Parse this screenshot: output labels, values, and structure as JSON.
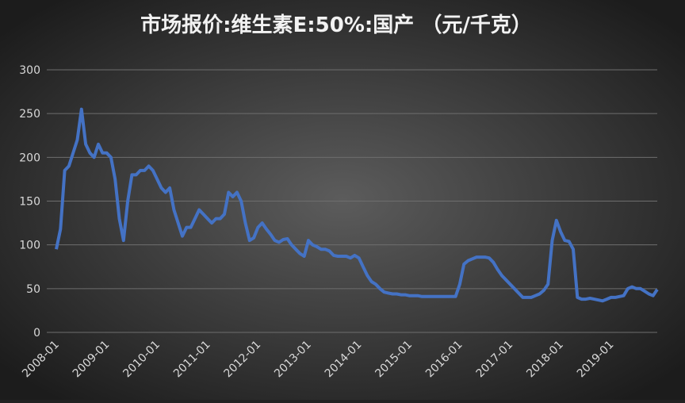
{
  "chart_data": {
    "type": "line",
    "title": "市场报价:维生素E:50%:国产 （元/千克）",
    "x": [
      "2008-01",
      "2008-02",
      "2008-03",
      "2008-04",
      "2008-05",
      "2008-06",
      "2008-07",
      "2008-08",
      "2008-09",
      "2008-10",
      "2008-11",
      "2008-12",
      "2009-01",
      "2009-02",
      "2009-03",
      "2009-04",
      "2009-05",
      "2009-06",
      "2009-07",
      "2009-08",
      "2009-09",
      "2009-10",
      "2009-11",
      "2009-12",
      "2010-01",
      "2010-02",
      "2010-03",
      "2010-04",
      "2010-05",
      "2010-06",
      "2010-07",
      "2010-08",
      "2010-09",
      "2010-10",
      "2010-11",
      "2010-12",
      "2011-01",
      "2011-02",
      "2011-03",
      "2011-04",
      "2011-05",
      "2011-06",
      "2011-07",
      "2011-08",
      "2011-09",
      "2011-10",
      "2011-11",
      "2011-12",
      "2012-01",
      "2012-02",
      "2012-03",
      "2012-04",
      "2012-05",
      "2012-06",
      "2012-07",
      "2012-08",
      "2012-09",
      "2012-10",
      "2012-11",
      "2012-12",
      "2013-01",
      "2013-02",
      "2013-03",
      "2013-04",
      "2013-05",
      "2013-06",
      "2013-07",
      "2013-08",
      "2013-09",
      "2013-10",
      "2013-11",
      "2013-12",
      "2014-01",
      "2014-02",
      "2014-03",
      "2014-04",
      "2014-05",
      "2014-06",
      "2014-07",
      "2014-08",
      "2014-09",
      "2014-10",
      "2014-11",
      "2014-12",
      "2015-01",
      "2015-02",
      "2015-03",
      "2015-04",
      "2015-05",
      "2015-06",
      "2015-07",
      "2015-08",
      "2015-09",
      "2015-10",
      "2015-11",
      "2015-12",
      "2016-01",
      "2016-02",
      "2016-03",
      "2016-04",
      "2016-05",
      "2016-06",
      "2016-07",
      "2016-08",
      "2016-09",
      "2016-10",
      "2016-11",
      "2016-12",
      "2017-01",
      "2017-02",
      "2017-03",
      "2017-04",
      "2017-05",
      "2017-06",
      "2017-07",
      "2017-08",
      "2017-09",
      "2017-10",
      "2017-11",
      "2017-12",
      "2018-01",
      "2018-02",
      "2018-03",
      "2018-04",
      "2018-05",
      "2018-06",
      "2018-07",
      "2018-08",
      "2018-09",
      "2018-10",
      "2018-11",
      "2018-12",
      "2019-01",
      "2019-02",
      "2019-03",
      "2019-04",
      "2019-05",
      "2019-06",
      "2019-07",
      "2019-08",
      "2019-09",
      "2019-10",
      "2019-11",
      "2019-12"
    ],
    "series": [
      {
        "color": "#4472c4",
        "values": [
          95,
          118,
          185,
          190,
          205,
          220,
          255,
          215,
          205,
          200,
          215,
          205,
          205,
          200,
          175,
          130,
          105,
          150,
          180,
          180,
          185,
          185,
          190,
          185,
          175,
          165,
          160,
          165,
          140,
          125,
          110,
          120,
          120,
          130,
          140,
          135,
          130,
          125,
          130,
          130,
          135,
          160,
          155,
          160,
          150,
          125,
          105,
          108,
          120,
          125,
          118,
          112,
          105,
          103,
          106,
          107,
          100,
          95,
          90,
          87,
          105,
          100,
          98,
          95,
          95,
          93,
          88,
          87,
          87,
          87,
          85,
          88,
          85,
          75,
          65,
          58,
          55,
          50,
          46,
          45,
          44,
          44,
          43,
          43,
          42,
          42,
          42,
          41,
          41,
          41,
          41,
          41,
          41,
          41,
          41,
          41,
          55,
          78,
          82,
          84,
          86,
          86,
          86,
          85,
          80,
          72,
          65,
          60,
          55,
          50,
          45,
          40,
          40,
          40,
          42,
          44,
          48,
          55,
          105,
          128,
          115,
          105,
          104,
          95,
          40,
          38,
          38,
          39,
          38,
          37,
          36,
          38,
          40,
          40,
          41,
          42,
          50,
          52,
          50,
          50,
          47,
          44,
          42,
          49
        ]
      }
    ],
    "xticks": [
      "2008-01",
      "2009-01",
      "2010-01",
      "2011-01",
      "2012-01",
      "2013-01",
      "2014-01",
      "2015-01",
      "2016-01",
      "2017-01",
      "2018-01",
      "2019-01"
    ],
    "ylim": [
      0,
      300
    ],
    "yticks": [
      0,
      50,
      100,
      150,
      200,
      250,
      300
    ],
    "grid": true
  }
}
